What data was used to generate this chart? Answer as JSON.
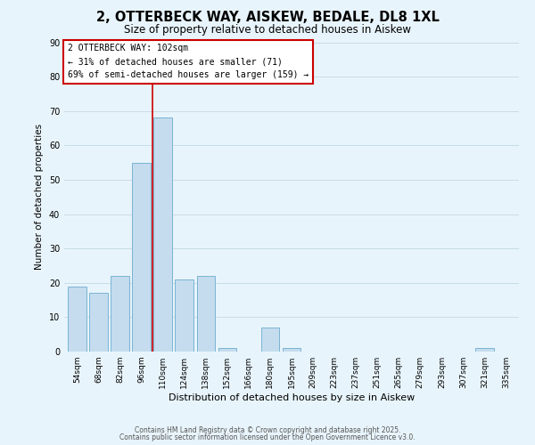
{
  "title": "2, OTTERBECK WAY, AISKEW, BEDALE, DL8 1XL",
  "subtitle": "Size of property relative to detached houses in Aiskew",
  "xlabel": "Distribution of detached houses by size in Aiskew",
  "ylabel": "Number of detached properties",
  "bar_labels": [
    "54sqm",
    "68sqm",
    "82sqm",
    "96sqm",
    "110sqm",
    "124sqm",
    "138sqm",
    "152sqm",
    "166sqm",
    "180sqm",
    "195sqm",
    "209sqm",
    "223sqm",
    "237sqm",
    "251sqm",
    "265sqm",
    "279sqm",
    "293sqm",
    "307sqm",
    "321sqm",
    "335sqm"
  ],
  "bar_values": [
    19,
    17,
    22,
    55,
    68,
    21,
    22,
    1,
    0,
    7,
    1,
    0,
    0,
    0,
    0,
    0,
    0,
    0,
    0,
    1,
    0
  ],
  "bar_color": "#c4dcee",
  "bar_edge_color": "#7ab4d4",
  "grid_color": "#c8dce8",
  "background_color": "#e8f4fb",
  "vline_x": 3.5,
  "vline_color": "#cc0000",
  "annotation_title": "2 OTTERBECK WAY: 102sqm",
  "annotation_line1": "← 31% of detached houses are smaller (71)",
  "annotation_line2": "69% of semi-detached houses are larger (159) →",
  "ylim": [
    0,
    90
  ],
  "yticks": [
    0,
    10,
    20,
    30,
    40,
    50,
    60,
    70,
    80,
    90
  ],
  "footnote1": "Contains HM Land Registry data © Crown copyright and database right 2025.",
  "footnote2": "Contains public sector information licensed under the Open Government Licence v3.0."
}
